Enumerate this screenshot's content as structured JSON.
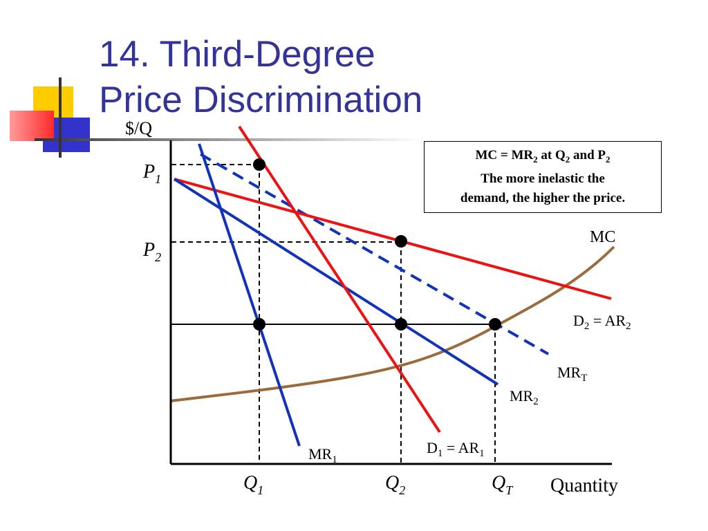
{
  "slide": {
    "title_line1": "14. Third-Degree",
    "title_line2": "Price Discrimination"
  },
  "colors": {
    "title": "#333399",
    "demand_curves": "#ee1111",
    "marginal_revenue": "#1133bb",
    "marginal_cost": "#9b6b3c",
    "deco_yellow": "#ffcc00",
    "deco_red": "#ff3333",
    "deco_blue": "#3333cc"
  },
  "diagram": {
    "y_axis_label": "$/Q",
    "x_axis_label": "Quantity",
    "price_levels": [
      {
        "main": "P",
        "sub": "1"
      },
      {
        "main": "P",
        "sub": "2"
      }
    ],
    "quantity_levels": [
      {
        "main": "Q",
        "sub": "1"
      },
      {
        "main": "Q",
        "sub": "2"
      },
      {
        "main": "Q",
        "sub": "T"
      }
    ],
    "curves": {
      "mc": "MC",
      "d2": {
        "main": "D",
        "sub": "2",
        "eq": " = AR",
        "sub2": "2"
      },
      "mrt": {
        "main": "MR",
        "sub": "T"
      },
      "mr2": {
        "main": "MR",
        "sub": "2"
      },
      "mr1": {
        "main": "MR",
        "sub": "1"
      },
      "d1": {
        "main": "D",
        "sub": "1",
        "eq": " = AR",
        "sub2": "1"
      }
    },
    "note": {
      "line1_a": "MC = MR",
      "line1_sub1": "2",
      "line1_b": " at Q",
      "line1_sub2": "2",
      "line1_c": " and P",
      "line1_sub3": "2",
      "line2": "The more inelastic the",
      "line3": "demand, the higher the price."
    }
  }
}
